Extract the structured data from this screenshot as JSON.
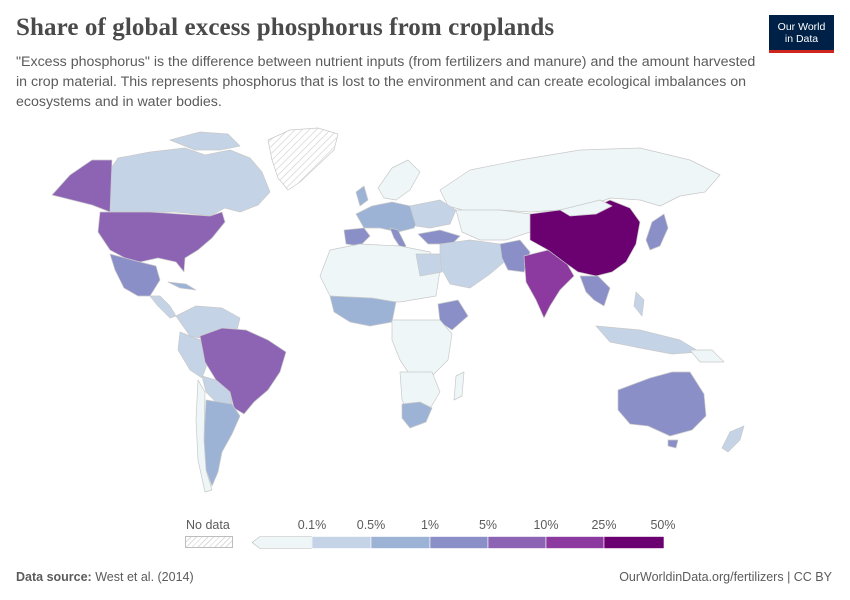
{
  "header": {
    "title": "Share of global excess phosphorus from croplands",
    "subtitle": "\"Excess phosphorus\" is the difference between nutrient inputs (from fertilizers and manure) and the amount harvested in crop material. This represents phosphorus that is lost to the environment and can create ecological imbalances on ecosystems and in water bodies."
  },
  "logo": {
    "line1": "Our World",
    "line2": "in Data"
  },
  "legend": {
    "no_data_label": "No data",
    "ticks": [
      "0.1%",
      "0.5%",
      "1%",
      "5%",
      "10%",
      "25%",
      "50%"
    ],
    "colors": [
      "#eef6f8",
      "#c4d3e6",
      "#9db3d6",
      "#8a8fc8",
      "#8d63b4",
      "#8c3aa0",
      "#6b0070"
    ],
    "no_data_color": "#dcdcdc"
  },
  "map_colors": {
    "ocean": "#ffffff",
    "border": "#c9c9c9"
  },
  "regions": [
    {
      "name": "China",
      "bin": 6
    },
    {
      "name": "India",
      "bin": 5
    },
    {
      "name": "United States",
      "bin": 4
    },
    {
      "name": "Brazil",
      "bin": 4
    },
    {
      "name": "Alaska",
      "bin": 4
    },
    {
      "name": "Mexico",
      "bin": 3
    },
    {
      "name": "Australia",
      "bin": 3
    },
    {
      "name": "Pakistan",
      "bin": 3
    },
    {
      "name": "Canada",
      "bin": 1
    },
    {
      "name": "Russia",
      "bin": 0
    },
    {
      "name": "Africa",
      "bin": 0
    },
    {
      "name": "Greenland",
      "bin": -1
    }
  ],
  "footer": {
    "source_label": "Data source:",
    "source_text": "West et al. (2014)",
    "url": "OurWorldinData.org/fertilizers | CC BY"
  }
}
